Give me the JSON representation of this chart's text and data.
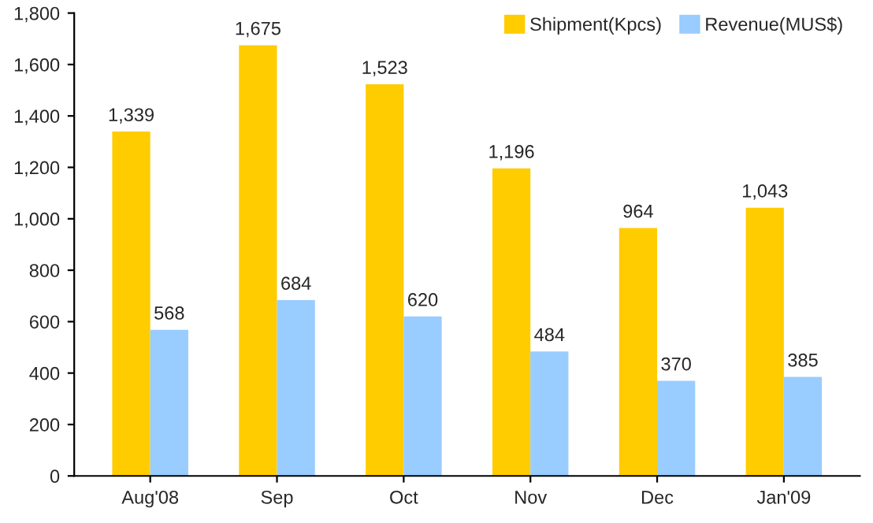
{
  "chart_data": {
    "type": "bar",
    "categories": [
      "Aug'08",
      "Sep",
      "Oct",
      "Nov",
      "Dec",
      "Jan'09"
    ],
    "series": [
      {
        "name": "Shipment(Kpcs)",
        "color": "#ffcc00",
        "values": [
          1339,
          1675,
          1523,
          1196,
          964,
          1043
        ],
        "value_labels": [
          "1,339",
          "1,675",
          "1,523",
          "1,196",
          "964",
          "1,043"
        ]
      },
      {
        "name": "Revenue(MUS$)",
        "color": "#99ccff",
        "values": [
          568,
          684,
          620,
          484,
          370,
          385
        ],
        "value_labels": [
          "568",
          "684",
          "620",
          "484",
          "370",
          "385"
        ]
      }
    ],
    "ylim": [
      0,
      1800
    ],
    "yticks": [
      0,
      200,
      400,
      600,
      800,
      {
        "value": 1000,
        "label": "1,000"
      },
      {
        "value": 1200,
        "label": "1,200"
      },
      {
        "value": 1400,
        "label": "1,400"
      },
      {
        "value": 1600,
        "label": "1,600"
      },
      {
        "value": 1800,
        "label": "1,800"
      }
    ],
    "grid": false,
    "legend": "top right"
  }
}
